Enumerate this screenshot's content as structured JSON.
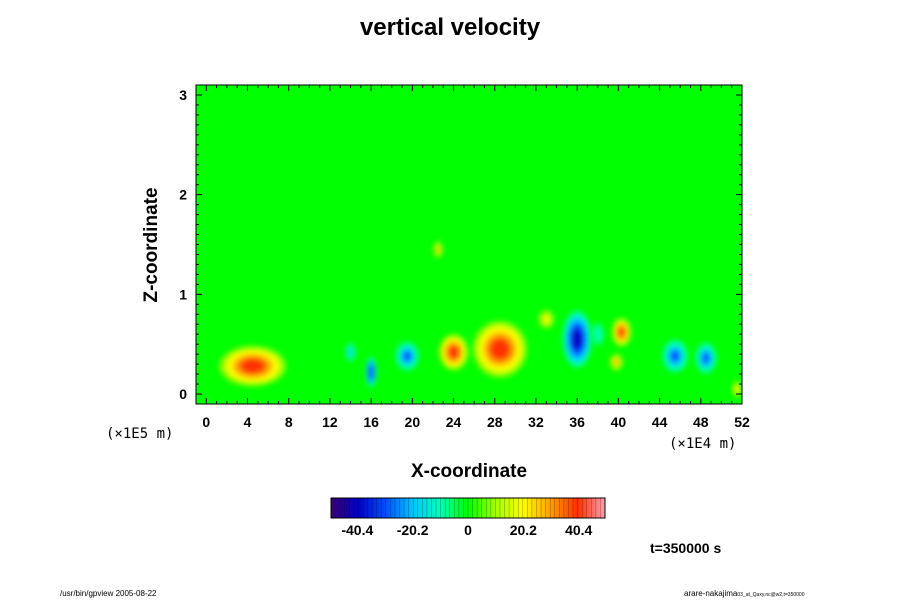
{
  "chart_data": {
    "type": "heatmap",
    "title": "vertical velocity",
    "xlabel": "X-coordinate",
    "ylabel": "Z-coordinate",
    "x_scale_note": "(×1E4 m)",
    "y_scale_note": "(×1E5 m)",
    "xlim": [
      -1,
      52
    ],
    "ylim": [
      -0.1,
      3.1
    ],
    "x_ticks": [
      "0",
      "4",
      "8",
      "12",
      "16",
      "20",
      "24",
      "28",
      "32",
      "36",
      "40",
      "44",
      "48",
      "52"
    ],
    "x_tick_values": [
      0,
      4,
      8,
      12,
      16,
      20,
      24,
      28,
      32,
      36,
      40,
      44,
      48,
      52
    ],
    "y_ticks": [
      "0",
      "1",
      "2",
      "3"
    ],
    "y_tick_values": [
      0,
      1,
      2,
      3
    ],
    "colorbar": {
      "range": [
        -50,
        50
      ],
      "tick_labels": [
        "-40.4",
        "-20.2",
        "0",
        "20.2",
        "40.4"
      ],
      "tick_values": [
        -40.4,
        -20.2,
        0,
        20.2,
        40.4
      ],
      "colors": [
        "#3a0070",
        "#0000c8",
        "#0050ff",
        "#00c8ff",
        "#00ffb4",
        "#00ff00",
        "#a0ff00",
        "#ffff00",
        "#ffa000",
        "#ff3000",
        "#ff9fb0"
      ]
    },
    "background_value": 0,
    "features": [
      {
        "x": 4.5,
        "z": 0.28,
        "rx": 3.2,
        "rz": 0.2,
        "value": 40
      },
      {
        "x": 24,
        "z": 0.42,
        "rx": 1.4,
        "rz": 0.18,
        "value": 35
      },
      {
        "x": 28.5,
        "z": 0.45,
        "rx": 2.6,
        "rz": 0.28,
        "value": 38
      },
      {
        "x": 40.3,
        "z": 0.62,
        "rx": 0.9,
        "rz": 0.14,
        "value": 40
      },
      {
        "x": 39.8,
        "z": 0.32,
        "rx": 0.6,
        "rz": 0.08,
        "value": 25
      },
      {
        "x": 36,
        "z": 0.55,
        "rx": 1.4,
        "rz": 0.28,
        "value": -45
      },
      {
        "x": 19.5,
        "z": 0.38,
        "rx": 1.1,
        "rz": 0.14,
        "value": -30
      },
      {
        "x": 16,
        "z": 0.22,
        "rx": 0.5,
        "rz": 0.15,
        "value": -35
      },
      {
        "x": 45.5,
        "z": 0.38,
        "rx": 1.2,
        "rz": 0.16,
        "value": -30
      },
      {
        "x": 48.5,
        "z": 0.36,
        "rx": 1.0,
        "rz": 0.15,
        "value": -28
      },
      {
        "x": 14,
        "z": 0.42,
        "rx": 0.5,
        "rz": 0.1,
        "value": -18
      },
      {
        "x": 22.5,
        "z": 1.45,
        "rx": 0.4,
        "rz": 0.08,
        "value": 25
      },
      {
        "x": 38,
        "z": 0.6,
        "rx": 0.6,
        "rz": 0.12,
        "value": -15
      },
      {
        "x": 33,
        "z": 0.75,
        "rx": 0.8,
        "rz": 0.1,
        "value": 15
      },
      {
        "x": 51.5,
        "z": 0.05,
        "rx": 0.4,
        "rz": 0.08,
        "value": 20
      }
    ]
  },
  "time_label": "t=350000 s",
  "footer_left": "/usr/bin/gpview 2005-08-22",
  "footer_right": "arare-nakajima",
  "footer_right_small": "03_at_Qaxy.nc@w2,t=350000"
}
